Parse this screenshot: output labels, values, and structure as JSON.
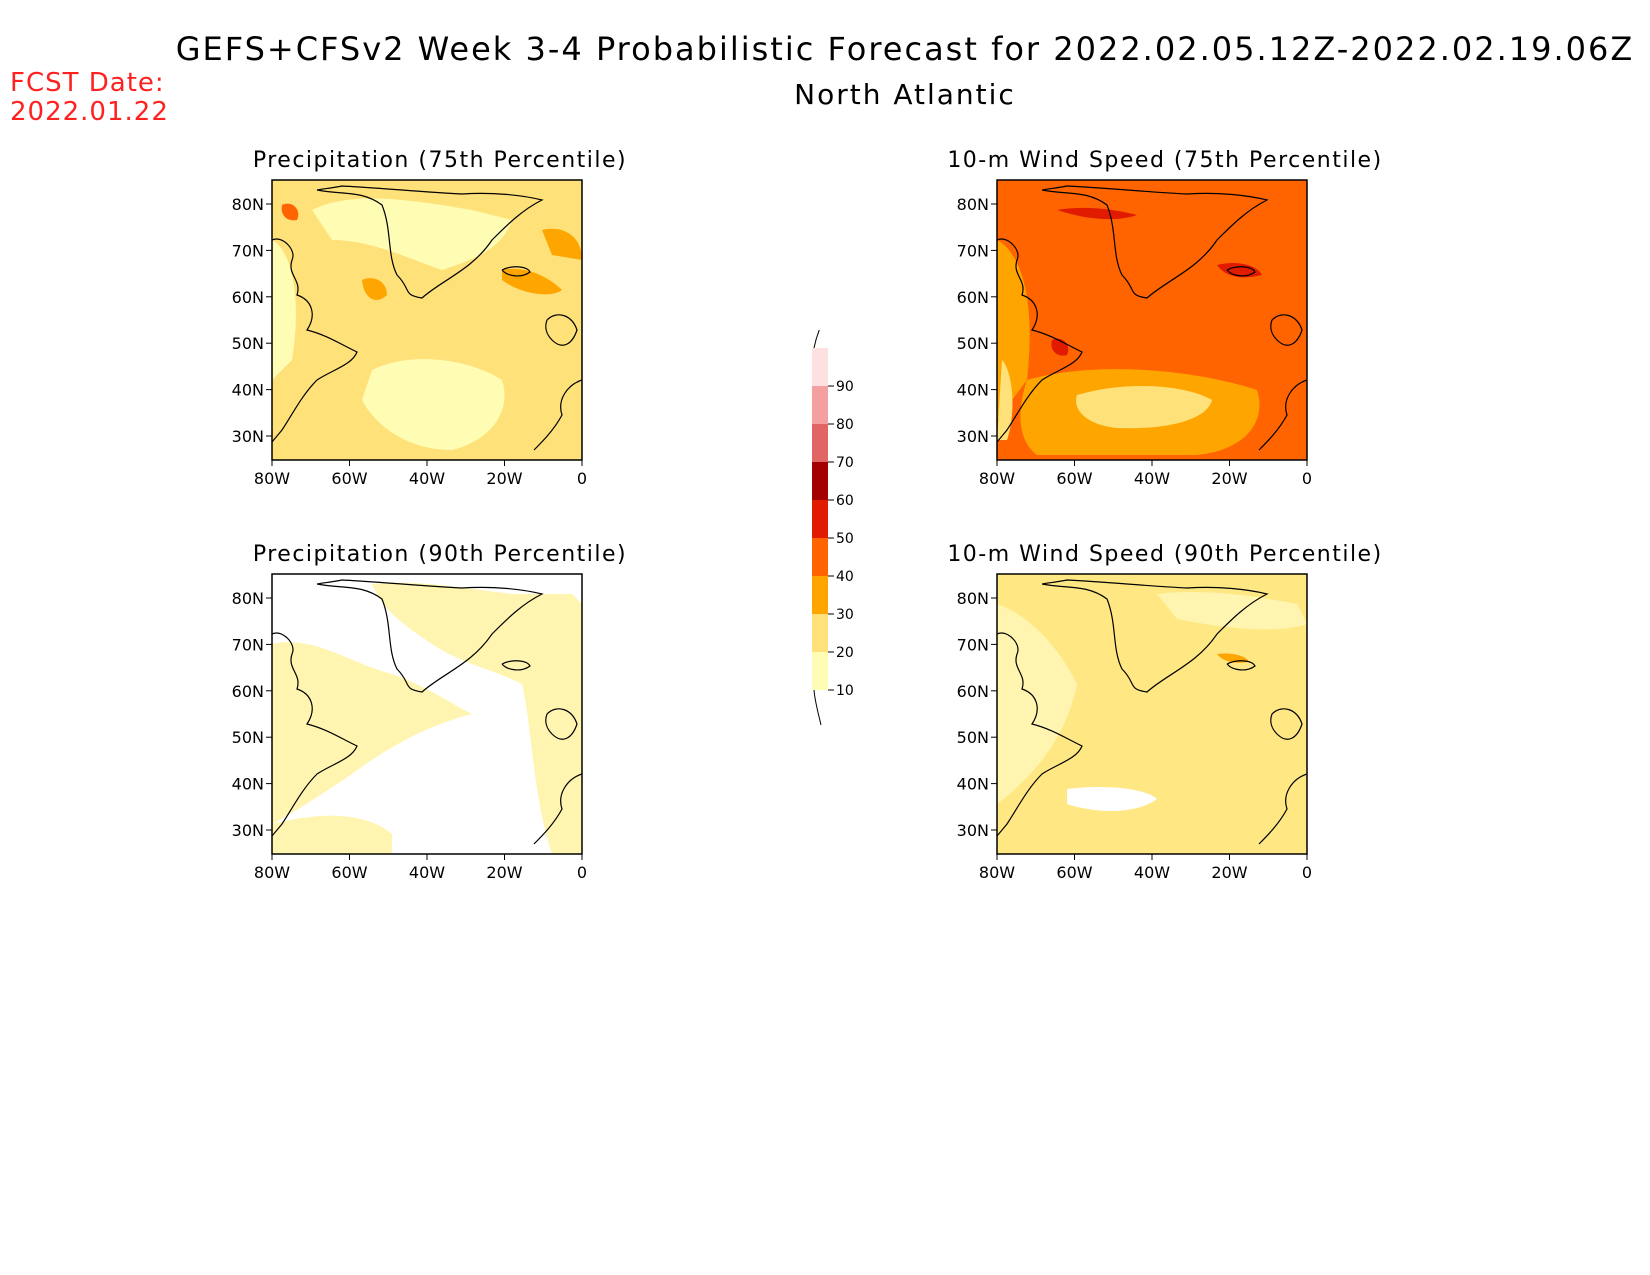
{
  "header": {
    "title": "GEFS+CFSv2 Week 3-4 Probabilistic Forecast for 2022.02.05.12Z-2022.02.19.06Z",
    "subtitle": "North Atlantic",
    "fcst_label": "FCST Date:",
    "fcst_date": "2022.01.22"
  },
  "panels": [
    {
      "title": "Precipitation (75th Percentile)",
      "base_color": "#ffe17a"
    },
    {
      "title": "10-m Wind Speed (75th Percentile)",
      "base_color": "#ffa500"
    },
    {
      "title": "Precipitation (90th Percentile)",
      "base_color": "#fff5b0"
    },
    {
      "title": "10-m Wind Speed (90th Percentile)",
      "base_color": "#ffe884"
    }
  ],
  "axes": {
    "lat_ticks": [
      "80N",
      "70N",
      "60N",
      "50N",
      "40N",
      "30N"
    ],
    "lon_ticks": [
      "80W",
      "60W",
      "40W",
      "20W",
      "0"
    ]
  },
  "colorbar": {
    "levels": [
      "10",
      "20",
      "30",
      "40",
      "50",
      "60",
      "70",
      "80",
      "90"
    ],
    "colors": [
      "#fffcb4",
      "#ffe17a",
      "#ffa500",
      "#ff6400",
      "#e11b00",
      "#a50000",
      "#e06666",
      "#f4a0a0",
      "#fde0e0"
    ]
  }
}
